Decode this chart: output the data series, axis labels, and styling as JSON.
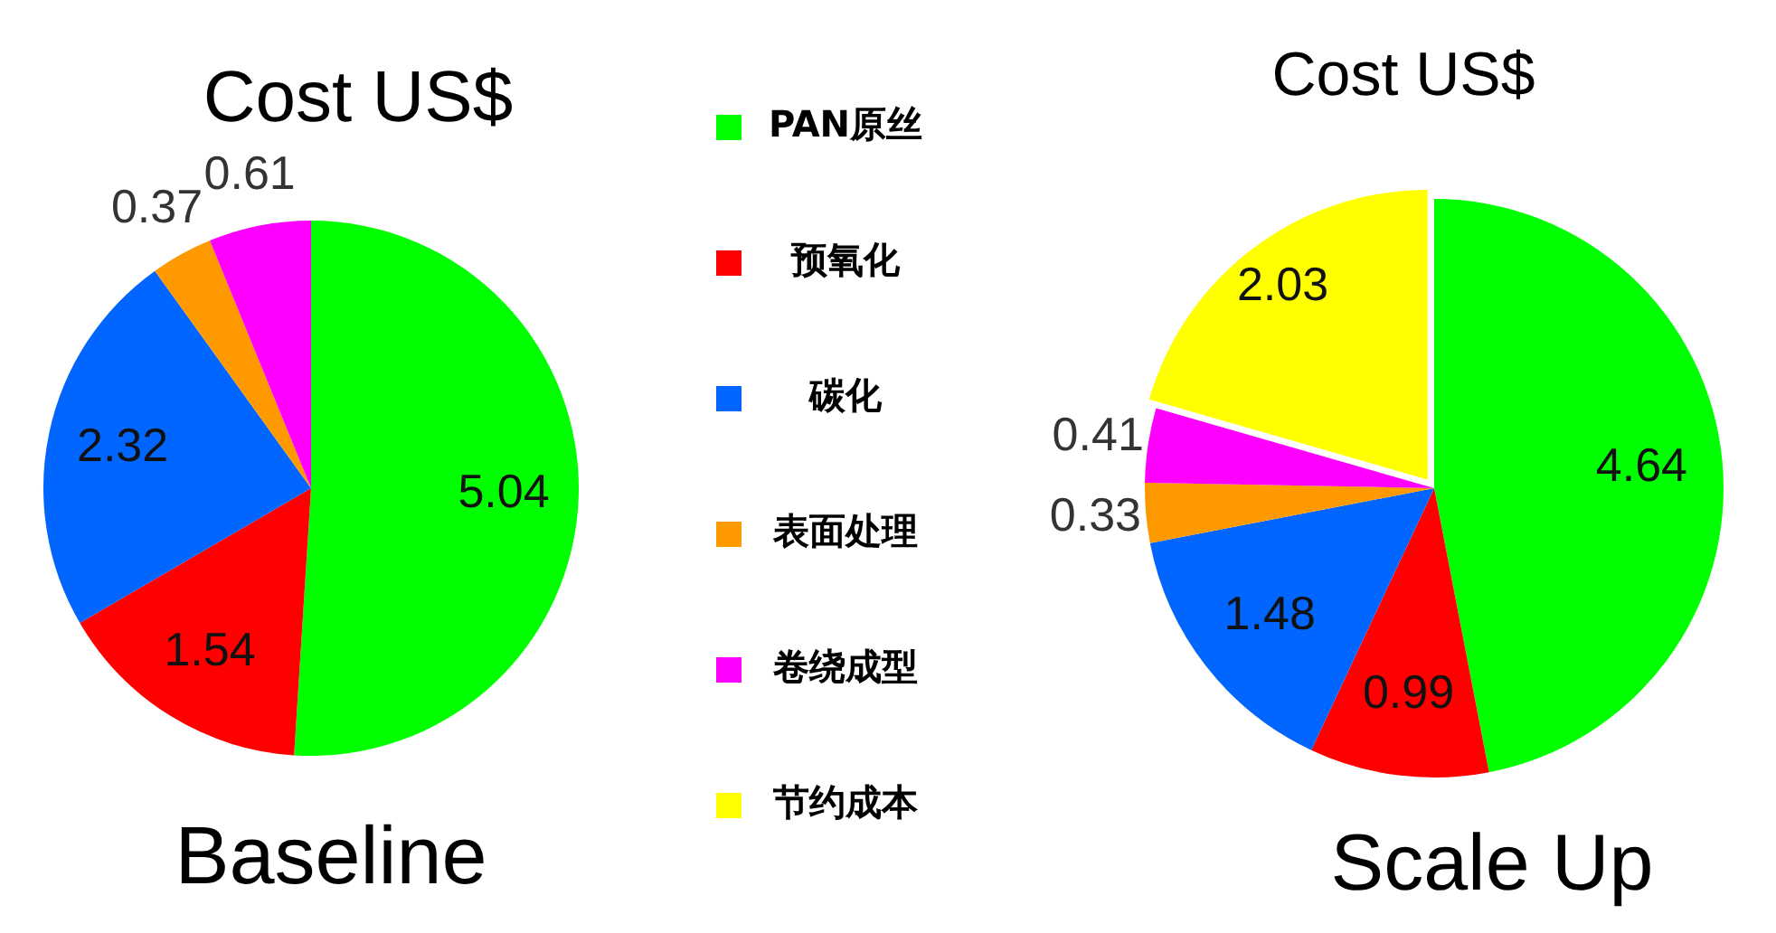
{
  "chart_data": [
    {
      "type": "pie",
      "title": "Cost US$",
      "xlabel": "Baseline",
      "categories": [
        null,
        null,
        null,
        null,
        null
      ],
      "values": [
        5.04,
        1.54,
        2.32,
        0.37,
        0.61
      ],
      "colors": [
        "#00ff00",
        "#ff0000",
        "#0066ff",
        "#ff9900",
        "#ff00ff"
      ],
      "data_labels": true,
      "legend": false
    },
    {
      "type": "pie",
      "title": "Cost US$",
      "xlabel": "Scale Up",
      "categories": [
        "PAN原丝",
        "预氧化",
        "碳化",
        "表面处理",
        "卷绕成型",
        "节约成本"
      ],
      "values": [
        4.64,
        0.99,
        1.48,
        0.33,
        0.41,
        2.03
      ],
      "colors": [
        "#00ff00",
        "#ff0000",
        "#0066ff",
        "#ff9900",
        "#ff00ff",
        "#ffff00"
      ],
      "data_labels": true,
      "legend": "left"
    }
  ]
}
